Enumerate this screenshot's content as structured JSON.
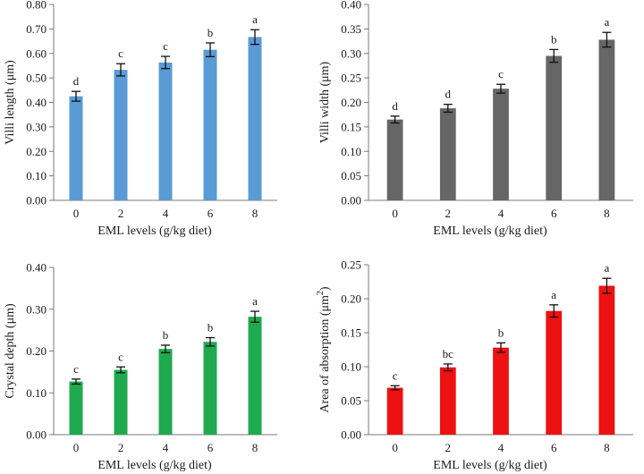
{
  "chart_data": [
    {
      "type": "bar",
      "panel": "top-left",
      "title": "",
      "xlabel": "EML levels (g/kg diet)",
      "ylabel": "Villi length (μm)",
      "ylabel_base": "Villi length (μm)",
      "ylabel_sup": "",
      "ylabel_tail": "",
      "categories": [
        "0",
        "2",
        "4",
        "6",
        "8"
      ],
      "values": [
        0.425,
        0.533,
        0.563,
        0.615,
        0.667
      ],
      "errors": [
        0.02,
        0.025,
        0.025,
        0.028,
        0.03
      ],
      "letters": [
        "d",
        "c",
        "c",
        "b",
        "a"
      ],
      "ylim": [
        0,
        0.8
      ],
      "yticks": [
        "0.00",
        "0.10",
        "0.20",
        "0.30",
        "0.40",
        "0.50",
        "0.60",
        "0.70",
        "0.80"
      ],
      "color": "#5b9bd5"
    },
    {
      "type": "bar",
      "panel": "top-right",
      "title": "",
      "xlabel": "EML levels (g/kg diet)",
      "ylabel": "Villi width (μm)",
      "ylabel_base": "Villi width (μm)",
      "ylabel_sup": "",
      "ylabel_tail": "",
      "categories": [
        "0",
        "2",
        "4",
        "6",
        "8"
      ],
      "values": [
        0.165,
        0.188,
        0.228,
        0.295,
        0.328
      ],
      "errors": [
        0.007,
        0.008,
        0.009,
        0.013,
        0.015
      ],
      "letters": [
        "d",
        "d",
        "c",
        "b",
        "a"
      ],
      "ylim": [
        0,
        0.4
      ],
      "yticks": [
        "0.00",
        "0.05",
        "0.10",
        "0.15",
        "0.20",
        "0.25",
        "0.30",
        "0.35",
        "0.40"
      ],
      "color": "#666666"
    },
    {
      "type": "bar",
      "panel": "bottom-left",
      "title": "",
      "xlabel": "EML levels (g/kg diet)",
      "ylabel": "Crystal depth (μm)",
      "ylabel_base": "Crystal depth (μm)",
      "ylabel_sup": "",
      "ylabel_tail": "",
      "categories": [
        "0",
        "2",
        "4",
        "6",
        "8"
      ],
      "values": [
        0.127,
        0.155,
        0.205,
        0.222,
        0.282
      ],
      "errors": [
        0.006,
        0.007,
        0.009,
        0.01,
        0.013
      ],
      "letters": [
        "c",
        "c",
        "b",
        "b",
        "a"
      ],
      "ylim": [
        0,
        0.4
      ],
      "yticks": [
        "0.00",
        "0.10",
        "0.20",
        "0.30",
        "0.40"
      ],
      "color": "#1faa50"
    },
    {
      "type": "bar",
      "panel": "bottom-right",
      "title": "",
      "xlabel": "EML levels (g/kg diet)",
      "ylabel": "Area of absorption (μm2)",
      "ylabel_base": "Area of absorption (μm",
      "ylabel_sup": "2",
      "ylabel_tail": ")",
      "categories": [
        "0",
        "2",
        "4",
        "6",
        "8"
      ],
      "values": [
        0.069,
        0.099,
        0.128,
        0.182,
        0.219
      ],
      "errors": [
        0.003,
        0.005,
        0.007,
        0.009,
        0.011
      ],
      "letters": [
        "c",
        "bc",
        "b",
        "a",
        "a"
      ],
      "ylim": [
        0,
        0.25
      ],
      "yticks": [
        "0.00",
        "0.05",
        "0.10",
        "0.15",
        "0.20",
        "0.25"
      ],
      "color": "#ee1111"
    }
  ]
}
